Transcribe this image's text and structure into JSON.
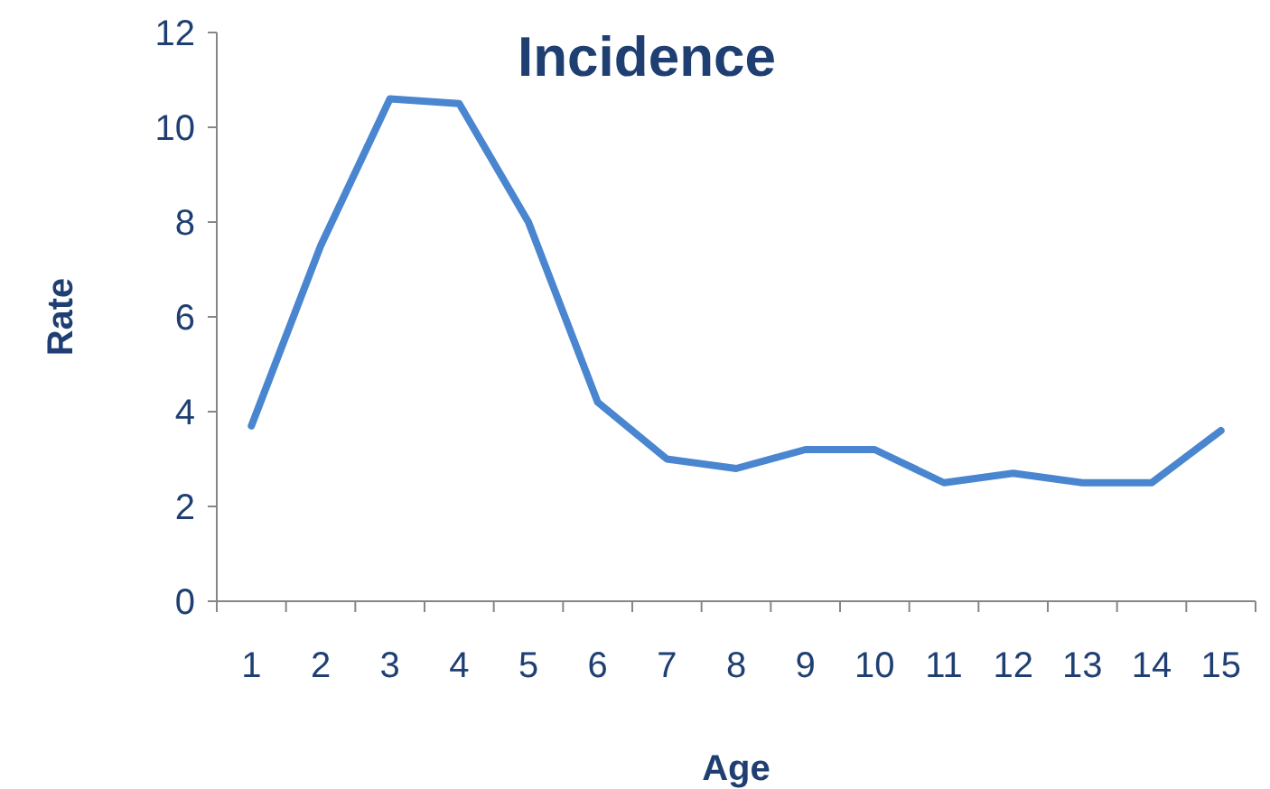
{
  "chart_data": {
    "type": "line",
    "title": "Incidence",
    "xlabel": "Age",
    "ylabel": "Rate",
    "categories": [
      "1",
      "2",
      "3",
      "4",
      "5",
      "6",
      "7",
      "8",
      "9",
      "10",
      "11",
      "12",
      "13",
      "14",
      "15"
    ],
    "series": [
      {
        "color": "#4a86d0",
        "values": [
          3.7,
          7.5,
          10.6,
          10.5,
          8.0,
          4.2,
          3.0,
          2.8,
          3.2,
          3.2,
          2.5,
          2.7,
          2.5,
          2.5,
          3.6
        ]
      }
    ],
    "ylim": [
      0,
      12
    ],
    "yticks": [
      0,
      2,
      4,
      6,
      8,
      10,
      12
    ],
    "grid": false,
    "marker": "none",
    "line_style": "solid"
  }
}
